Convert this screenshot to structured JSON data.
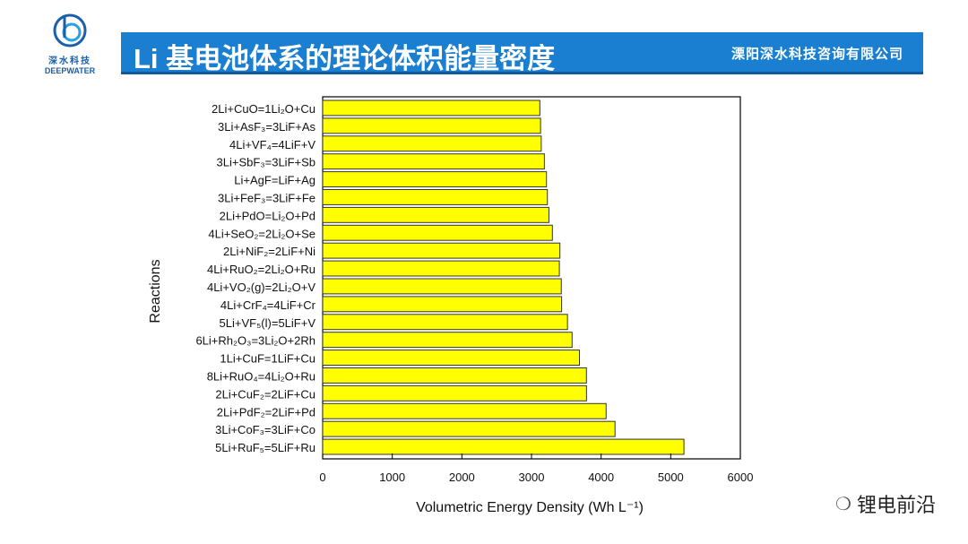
{
  "header": {
    "title": "Li 基电池体系的理论体积能量密度",
    "company": "溧阳深水科技咨询有限公司"
  },
  "logo": {
    "cn": "深水科技",
    "en": "DEEPWATER"
  },
  "watermark": {
    "text": "锂电前沿",
    "icon": "wechat-icon"
  },
  "colors": {
    "bar": "#ffff00",
    "header": "#1a7fd0"
  },
  "chart_data": {
    "type": "bar",
    "orientation": "horizontal",
    "title": "",
    "xlabel": "Volumetric Energy Density (Wh L⁻¹)",
    "ylabel": "Reactions",
    "xlim": [
      0,
      6000
    ],
    "xticks": [
      "0",
      "1000",
      "2000",
      "3000",
      "4000",
      "5000",
      "6000"
    ],
    "grid": false,
    "categories": [
      "2Li+CuO=1Li₂O+Cu",
      "3Li+AsF₃=3LiF+As",
      "4Li+VF₄=4LiF+V",
      "3Li+SbF₃=3LiF+Sb",
      "Li+AgF=LiF+Ag",
      "3Li+FeF₃=3LiF+Fe",
      "2Li+PdO=Li₂O+Pd",
      "4Li+SeO₂=2Li₂O+Se",
      "2Li+NiF₂=2LiF+Ni",
      "4Li+RuO₂=2Li₂O+Ru",
      "4Li+VO₂(g)=2Li₂O+V",
      "4Li+CrF₄=4LiF+Cr",
      "5Li+VF₅(l)=5LiF+V",
      "6Li+Rh₂O₃=3Li₂O+2Rh",
      "1Li+CuF=1LiF+Cu",
      "8Li+RuO₄=4Li₂O+Ru",
      "2Li+CuF₂=2LiF+Cu",
      "2Li+PdF₂=2LiF+Pd",
      "3Li+CoF₃=3LiF+Co",
      "5Li+RuF₅=5LiF+Ru"
    ],
    "values": [
      3120,
      3130,
      3140,
      3185,
      3215,
      3228,
      3250,
      3300,
      3408,
      3400,
      3428,
      3433,
      3517,
      3583,
      3689,
      3789,
      3790,
      4072,
      4200,
      5190
    ]
  }
}
